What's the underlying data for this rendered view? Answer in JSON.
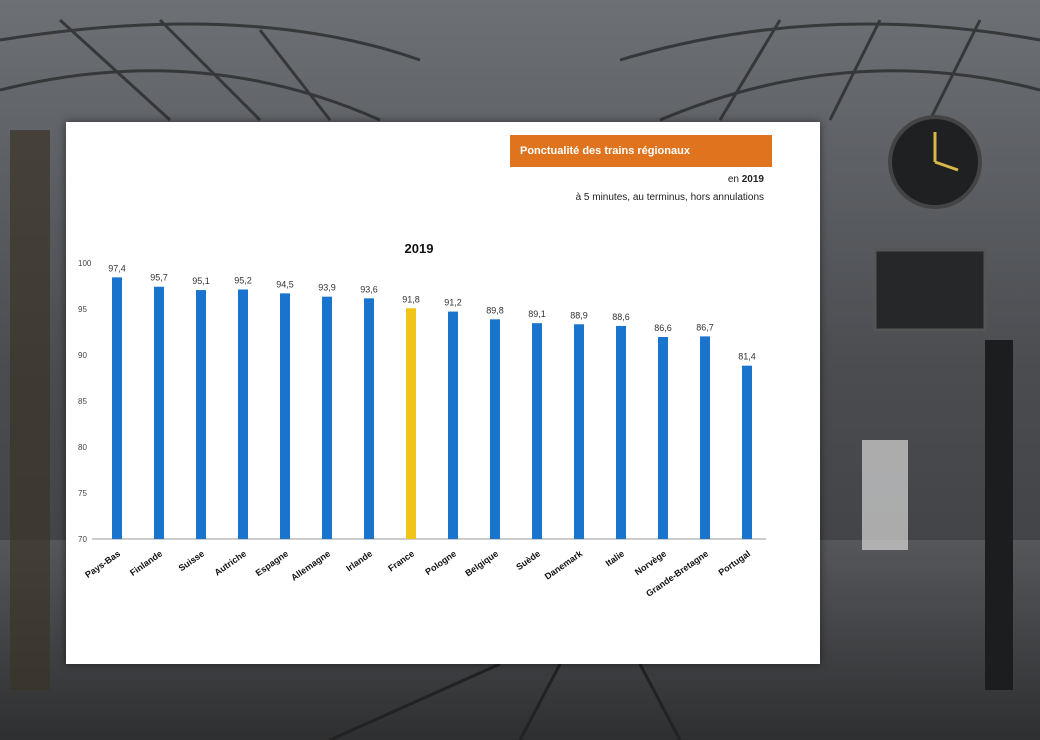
{
  "slide": {
    "badge_text": "Ponctualité des trains régionaux",
    "year_prefix": "en",
    "year": "2019",
    "scope": "à 5 minutes, au terminus, hors annulations"
  },
  "colors": {
    "bar": "#1a73cc",
    "highlight": "#f0c419",
    "badge": "#e0741e"
  },
  "chart_data": {
    "type": "bar",
    "title": "2019",
    "xlabel": "",
    "ylabel": "",
    "ylim": [
      50,
      100
    ],
    "yticks": [
      "100",
      "95",
      "90",
      "85",
      "80",
      "75",
      "70"
    ],
    "categories": [
      "Pays-Bas",
      "Finlande",
      "Suisse",
      "Autriche",
      "Espagne",
      "Allemagne",
      "Irlande",
      "France",
      "Pologne",
      "Belgique",
      "Suède",
      "Danemark",
      "Italie",
      "Norvège",
      "Grande-Bretagne",
      "Portugal"
    ],
    "values": [
      97.4,
      95.7,
      95.1,
      95.2,
      94.5,
      93.9,
      93.6,
      91.8,
      91.2,
      89.8,
      89.1,
      88.9,
      88.6,
      86.6,
      86.7,
      81.4
    ],
    "value_labels": [
      "97,4",
      "95,7",
      "95,1",
      "95,2",
      "94,5",
      "93,9",
      "93,6",
      "91,8",
      "91,2",
      "89,8",
      "89,1",
      "88,9",
      "88,6",
      "86,6",
      "86,7",
      "81,4"
    ],
    "highlight_index": 7,
    "grid": false,
    "legend": "none"
  }
}
